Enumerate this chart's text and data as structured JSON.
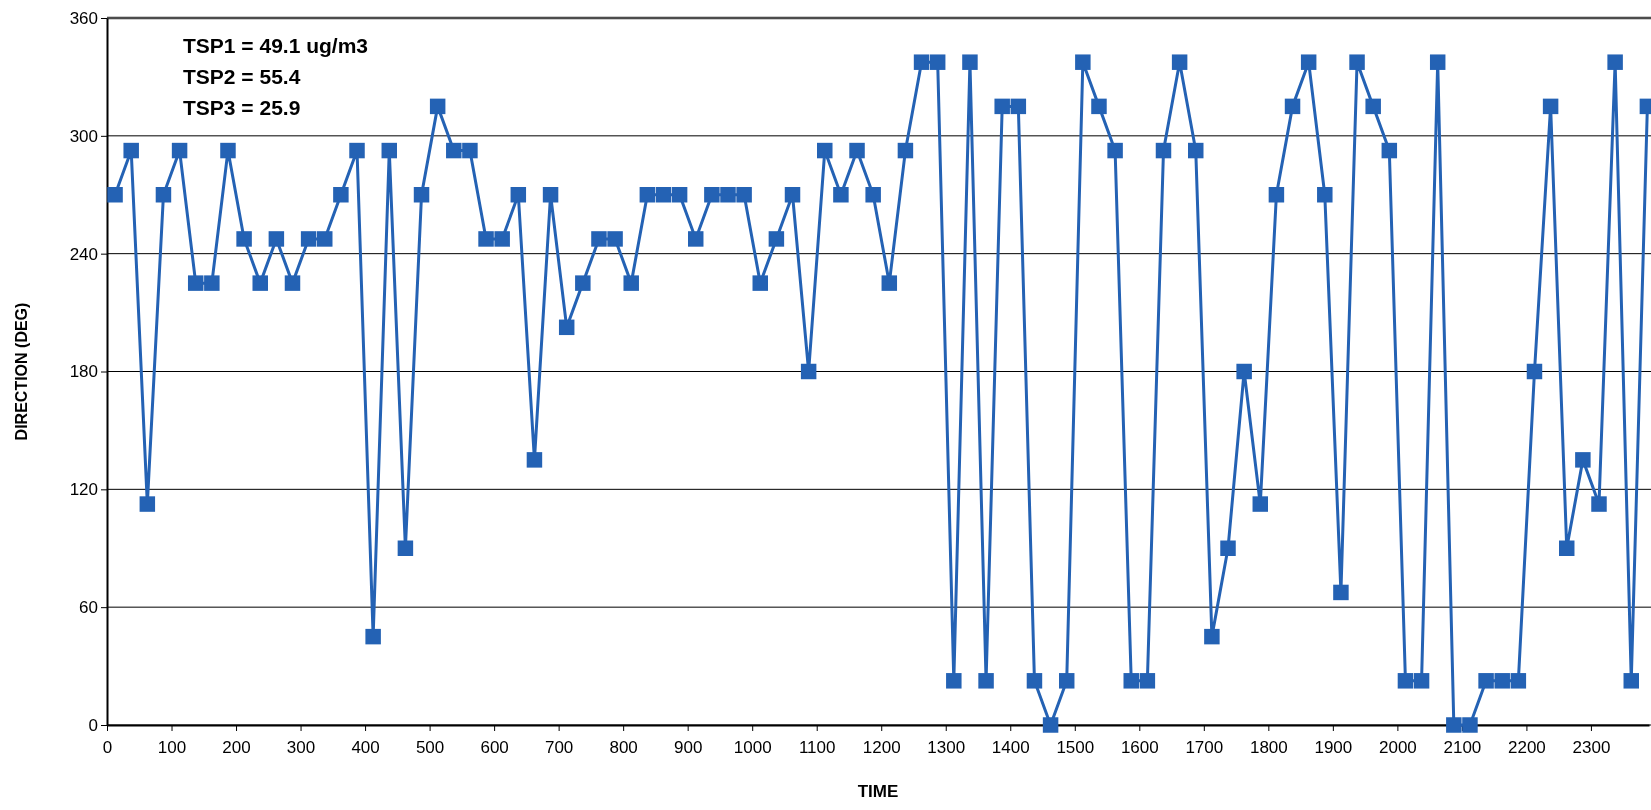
{
  "chart_data": {
    "type": "line",
    "xlabel": "TIME",
    "ylabel": "DIRECTION (DEG)",
    "annotations": [
      "TSP1 = 49.1 ug/m3",
      "TSP2 = 55.4",
      "TSP3 = 25.9"
    ],
    "x": [
      12.5,
      37.5,
      62.5,
      87.5,
      112.5,
      137.5,
      162.5,
      187.5,
      212.5,
      237.5,
      262.5,
      287.5,
      312.5,
      337.5,
      362.5,
      387.5,
      412.5,
      437.5,
      462.5,
      487.5,
      512.5,
      537.5,
      562.5,
      587.5,
      612.5,
      637.5,
      662.5,
      687.5,
      712.5,
      737.5,
      762.5,
      787.5,
      812.5,
      837.5,
      862.5,
      887.5,
      912.5,
      937.5,
      962.5,
      987.5,
      1012.5,
      1037.5,
      1062.5,
      1087.5,
      1112.5,
      1137.5,
      1162.5,
      1187.5,
      1212.5,
      1237.5,
      1262.5,
      1287.5,
      1312.5,
      1337.5,
      1362.5,
      1387.5,
      1412.5,
      1437.5,
      1462.5,
      1487.5,
      1512.5,
      1537.5,
      1562.5,
      1587.5,
      1612.5,
      1637.5,
      1662.5,
      1687.5,
      1712.5,
      1737.5,
      1762.5,
      1787.5,
      1812.5,
      1837.5,
      1862.5,
      1887.5,
      1912.5,
      1937.5,
      1962.5,
      1987.5,
      2012.5,
      2037.5,
      2062.5,
      2087.5,
      2112.5,
      2137.5,
      2162.5,
      2187.5,
      2212.5,
      2237.5,
      2262.5,
      2287.5,
      2312.5,
      2337.5,
      2362.5,
      2387.5
    ],
    "series": [
      {
        "color": "#2462b4",
        "values": [
          270,
          292.5,
          112.5,
          270,
          292.5,
          225,
          225,
          292.5,
          247.5,
          225,
          247.5,
          225,
          247.5,
          247.5,
          270,
          292.5,
          45,
          292.5,
          90,
          270,
          315,
          292.5,
          292.5,
          247.5,
          247.5,
          270,
          135,
          270,
          202.5,
          225,
          247.5,
          247.5,
          225,
          270,
          270,
          270,
          247.5,
          270,
          270,
          270,
          225,
          247.5,
          270,
          180,
          292.5,
          270,
          292.5,
          270,
          225,
          292.5,
          337.5,
          337.5,
          22.5,
          337.5,
          22.5,
          315,
          315,
          22.5,
          0,
          22.5,
          337.5,
          315,
          292.5,
          22.5,
          22.5,
          292.5,
          337.5,
          292.5,
          45,
          90,
          180,
          112.5,
          270,
          315,
          337.5,
          270,
          67.5,
          337.5,
          315,
          292.5,
          22.5,
          22.5,
          337.5,
          0,
          0,
          22.5,
          22.5,
          22.5,
          180,
          315,
          90,
          135,
          112.5,
          337.5,
          22.5,
          315
        ]
      }
    ],
    "xlim": [
      0,
      2390
    ],
    "ylim": [
      0,
      360
    ],
    "xticks": [
      0,
      100,
      200,
      300,
      400,
      500,
      600,
      700,
      800,
      900,
      1000,
      1100,
      1200,
      1300,
      1400,
      1500,
      1600,
      1700,
      1800,
      1900,
      2000,
      2100,
      2200,
      2300
    ],
    "yticks": [
      0,
      60,
      120,
      180,
      240,
      300,
      360
    ],
    "grid": "y",
    "marker": "square",
    "line_style": "solid"
  }
}
